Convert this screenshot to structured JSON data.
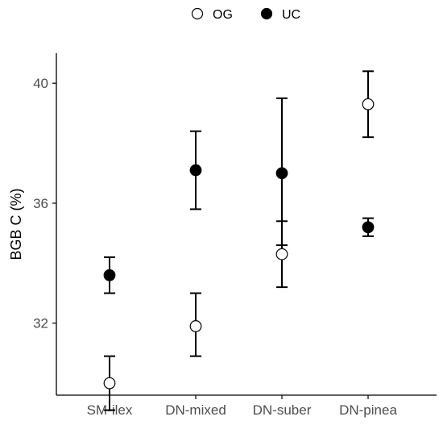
{
  "chart_data": {
    "type": "scatter",
    "title": "",
    "xlabel": "",
    "ylabel": "BGB C (%)",
    "categories": [
      "SM-ilex",
      "DN-mixed",
      "DN-suber",
      "DN-pinea"
    ],
    "y_ticks": [
      32,
      36,
      40
    ],
    "ylim": [
      29.6,
      41.0
    ],
    "legend_position": "top",
    "series": [
      {
        "name": "OG",
        "marker": "open-circle",
        "values": [
          30.0,
          31.9,
          34.3,
          39.3
        ],
        "err_low": [
          29.1,
          30.9,
          33.2,
          38.2
        ],
        "err_high": [
          30.9,
          33.0,
          35.4,
          40.4
        ]
      },
      {
        "name": "UC",
        "marker": "filled-circle",
        "values": [
          33.6,
          37.1,
          37.0,
          35.2
        ],
        "err_low": [
          33.0,
          35.8,
          34.6,
          34.9
        ],
        "err_high": [
          34.2,
          38.4,
          39.5,
          35.5
        ]
      }
    ],
    "colors": {
      "og_fill": "#ffffff",
      "uc_fill": "#000000",
      "stroke": "#000000",
      "tick_text": "#4d4d4d"
    }
  }
}
